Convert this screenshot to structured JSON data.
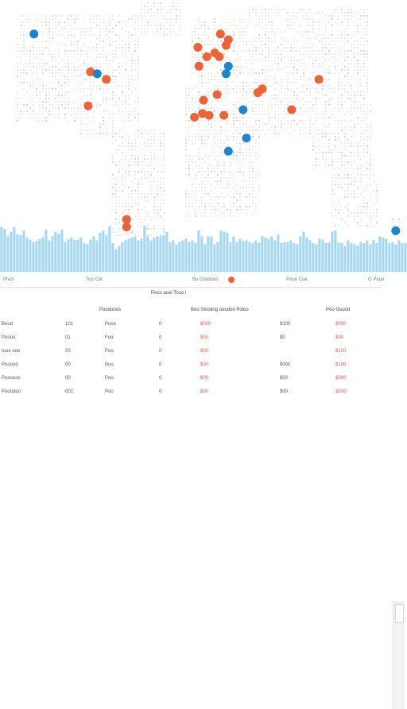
{
  "colors": {
    "map_land_dots": "#e9c4b6",
    "map_land_dots_dark": "#8b97a8",
    "marker_orange": "#e8643a",
    "marker_blue": "#1f85c8",
    "bars": "#a9d7f1"
  },
  "map": {
    "orange_markers": [
      {
        "name": "Western Europe 1",
        "lon": -5,
        "lat": 55
      },
      {
        "name": "Western Europe 2",
        "lon": 3,
        "lat": 50
      },
      {
        "name": "Central Europe 1",
        "lon": 10,
        "lat": 52
      },
      {
        "name": "Central Europe 2",
        "lon": 14,
        "lat": 50
      },
      {
        "name": "Scandinavia 1",
        "lon": 15,
        "lat": 62
      },
      {
        "name": "Scandinavia 2",
        "lon": 22,
        "lat": 59
      },
      {
        "name": "Eastern Europe",
        "lon": 20,
        "lat": 56
      },
      {
        "name": "Iberia",
        "lon": -4,
        "lat": 45
      },
      {
        "name": "North America 1",
        "lon": -100,
        "lat": 42
      },
      {
        "name": "North America 2",
        "lon": -86,
        "lat": 38
      },
      {
        "name": "Mexico",
        "lon": -102,
        "lat": 24
      },
      {
        "name": "North Africa 1",
        "lon": 0,
        "lat": 27
      },
      {
        "name": "North Africa 2",
        "lon": 12,
        "lat": 30
      },
      {
        "name": "Sahel 1",
        "lon": -8,
        "lat": 18
      },
      {
        "name": "Sahel 2",
        "lon": -1,
        "lat": 20
      },
      {
        "name": "Sahel 3",
        "lon": 5,
        "lat": 19
      },
      {
        "name": "Sahel 4",
        "lon": 18,
        "lat": 19
      },
      {
        "name": "Middle East 1",
        "lon": 48,
        "lat": 31
      },
      {
        "name": "Middle East 2",
        "lon": 52,
        "lat": 33
      },
      {
        "name": "South Asia",
        "lon": 78,
        "lat": 22
      },
      {
        "name": "China",
        "lon": 102,
        "lat": 38
      },
      {
        "name": "South America 1",
        "lon": -68,
        "lat": -36
      },
      {
        "name": "South America 2",
        "lon": -68,
        "lat": -40
      }
    ],
    "blue_markers": [
      {
        "name": "Alaska",
        "lon": -150,
        "lat": 62
      },
      {
        "name": "Canada",
        "lon": -94,
        "lat": 41
      },
      {
        "name": "Northern Russia",
        "lon": 128,
        "lat": 84
      },
      {
        "name": "Black Sea",
        "lon": 22,
        "lat": 45
      },
      {
        "name": "Turkey",
        "lon": 20,
        "lat": 41
      },
      {
        "name": "Arabia",
        "lon": 35,
        "lat": 22
      },
      {
        "name": "East Africa",
        "lon": 38,
        "lat": 7
      },
      {
        "name": "Central Africa",
        "lon": 22,
        "lat": 0
      },
      {
        "name": "New Zealand",
        "lon": 170,
        "lat": -42
      }
    ]
  },
  "bars": {
    "values": [
      0.78,
      0.75,
      0.62,
      0.7,
      0.78,
      0.66,
      0.64,
      0.72,
      0.6,
      0.56,
      0.52,
      0.54,
      0.57,
      0.6,
      0.74,
      0.55,
      0.62,
      0.7,
      0.66,
      0.74,
      0.52,
      0.57,
      0.6,
      0.55,
      0.56,
      0.6,
      0.5,
      0.48,
      0.56,
      0.62,
      0.55,
      0.68,
      0.72,
      0.64,
      0.8,
      0.5,
      0.4,
      0.45,
      0.52,
      0.55,
      0.58,
      0.6,
      0.62,
      0.55,
      0.58,
      0.8,
      0.62,
      0.55,
      0.6,
      0.62,
      0.62,
      0.64,
      0.7,
      0.52,
      0.55,
      0.48,
      0.52,
      0.55,
      0.58,
      0.52,
      0.55,
      0.5,
      0.72,
      0.62,
      0.48,
      0.62,
      0.62,
      0.48,
      0.52,
      0.72,
      0.7,
      0.68,
      0.52,
      0.62,
      0.52,
      0.58,
      0.54,
      0.55,
      0.52,
      0.5,
      0.55,
      0.5,
      0.62,
      0.6,
      0.58,
      0.62,
      0.55,
      0.65,
      0.5,
      0.52,
      0.52,
      0.55,
      0.5,
      0.48,
      0.62,
      0.7,
      0.6,
      0.55,
      0.5,
      0.48,
      0.58,
      0.56,
      0.5,
      0.52,
      0.7,
      0.72,
      0.52,
      0.5,
      0.45,
      0.55,
      0.5,
      0.48,
      0.46,
      0.52,
      0.5,
      0.55,
      0.48,
      0.56,
      0.5,
      0.62,
      0.6,
      0.58,
      0.5,
      0.52,
      0.48,
      0.55,
      0.5,
      0.5
    ]
  },
  "axis": {
    "labels": [
      "Pivot",
      "Too Cot",
      "Bu Goodoot",
      "Pouo Cue",
      "G Pouo"
    ],
    "marker_color": "#e8643a"
  },
  "caption": "Poco aool Tooo I",
  "table": {
    "headers": [
      "Poodooos",
      "Boo Stooiing ooodod Poloo",
      "Poo Guood"
    ],
    "rows": [
      {
        "c0": "Bood",
        "c1": "101",
        "c2": "Pooo",
        "c3": "0",
        "c4": "$000",
        "c5": "$100",
        "c6": "$000"
      },
      {
        "c0": "Poooo",
        "c1": "01",
        "c2": "Foo",
        "c3": "0",
        "c4": "$00",
        "c5": "$0",
        "c6": "$00"
      },
      {
        "c0": "Iooo  ooo",
        "c1": "00",
        "c2": "Poo",
        "c3": "0",
        "c4": "$00",
        "c5": "",
        "c6": "$100"
      },
      {
        "c0": "Pooood",
        "c1": "00",
        "c2": "Boo",
        "c3": "0",
        "c4": "$00",
        "c5": "$000",
        "c6": "$100"
      },
      {
        "c0": "Pooooos",
        "c1": "00",
        "c2": "Poo",
        "c3": "0",
        "c4": "$00",
        "c5": "$00",
        "c6": "$000"
      },
      {
        "c0": "Pooodoo",
        "c1": "001",
        "c2": "Poo",
        "c3": "0",
        "c4": "$00",
        "c5": "$00",
        "c6": "$000"
      }
    ]
  }
}
